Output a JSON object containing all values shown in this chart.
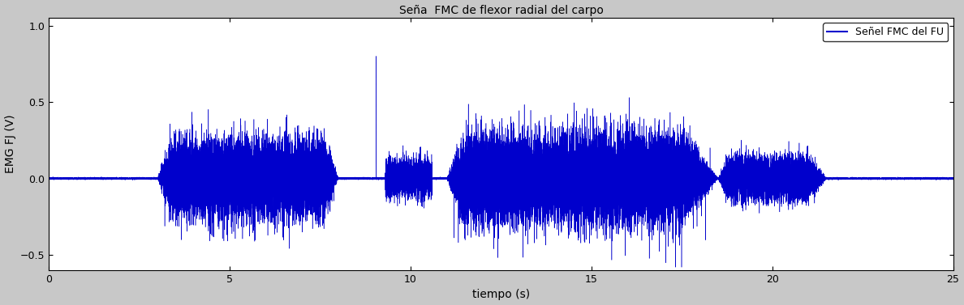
{
  "title": "Seña  FMC de flexor radial del carpo",
  "xlabel": "tiempo (s)",
  "ylabel": "EMG FJ (V)",
  "legend_label": "Señel FMC del FU",
  "xlim": [
    0,
    25
  ],
  "ylim": [
    -0.6,
    1.05
  ],
  "yticks": [
    -0.5,
    0,
    0.5,
    1
  ],
  "xticks": [
    0,
    5,
    10,
    15,
    20,
    25
  ],
  "line_color": "#0000cc",
  "bg_color": "#c8c8c8",
  "axes_bg": "#ffffff",
  "sample_rate": 2000,
  "duration": 25,
  "seed": 42
}
